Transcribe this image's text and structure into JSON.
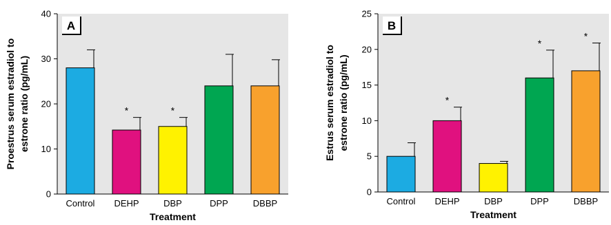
{
  "chart_data": [
    {
      "type": "bar",
      "panel_label": "A",
      "ylabel": "Proestrus serum estradiol to estrone ratio (pg/mL)",
      "ylabel_lines": [
        "Proestrus serum estradiol to",
        "estrone ratio (pg/mL)"
      ],
      "xlabel": "Treatment",
      "categories": [
        "Control",
        "DEHP",
        "DBP",
        "DPP",
        "DBBP"
      ],
      "values": [
        28,
        14.2,
        15,
        24,
        24
      ],
      "error_upper": [
        4,
        2.8,
        2,
        7,
        5.8
      ],
      "significant": [
        false,
        true,
        true,
        false,
        false
      ],
      "significance_marker": "*",
      "colors": [
        "#1cabe2",
        "#e0117f",
        "#fff200",
        "#00a651",
        "#f8a12d"
      ],
      "ylim": [
        0,
        40
      ],
      "yticks": [
        0,
        10,
        20,
        30,
        40
      ],
      "plot_background": "#e6e6e6",
      "grid": false
    },
    {
      "type": "bar",
      "panel_label": "B",
      "ylabel": "Estrus serum estradiol to estrone ratio (pg/mL)",
      "ylabel_lines": [
        "Estrus serum estradiol to",
        "estrone ratio (pg/mL)"
      ],
      "xlabel": "Treatment",
      "categories": [
        "Control",
        "DEHP",
        "DBP",
        "DPP",
        "DBBP"
      ],
      "values": [
        5,
        10,
        4,
        16,
        17
      ],
      "error_upper": [
        1.9,
        1.9,
        0.3,
        3.9,
        3.9
      ],
      "significant": [
        false,
        true,
        false,
        true,
        true
      ],
      "significance_marker": "*",
      "colors": [
        "#1cabe2",
        "#e0117f",
        "#fff200",
        "#00a651",
        "#f8a12d"
      ],
      "ylim": [
        0,
        25
      ],
      "yticks": [
        0,
        5,
        10,
        15,
        20,
        25
      ],
      "plot_background": "#e6e6e6",
      "grid": false
    }
  ]
}
